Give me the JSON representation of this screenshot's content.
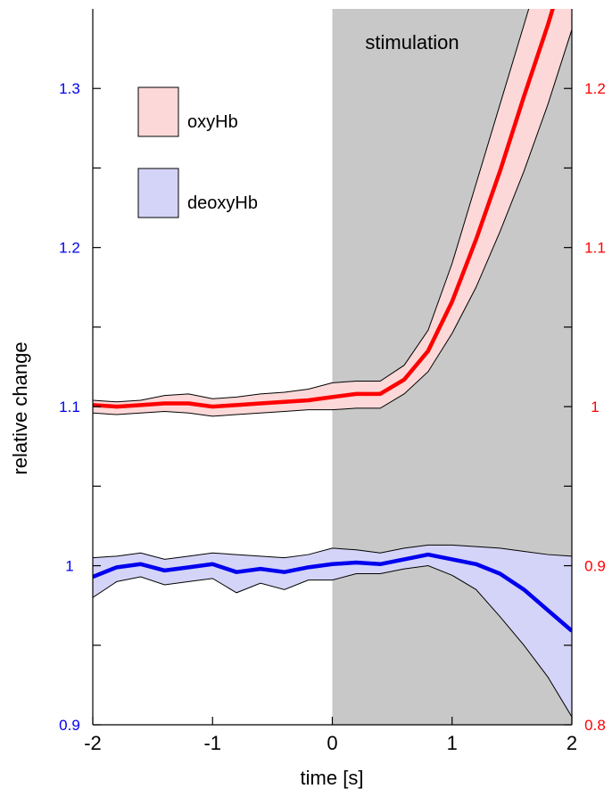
{
  "chart_data": {
    "type": "line",
    "title": "",
    "xlabel": "time [s]",
    "ylabel": "relative change",
    "xlim": [
      -2,
      2
    ],
    "ylim_left": [
      0.9,
      1.35
    ],
    "ylim_right": [
      0.8,
      1.25
    ],
    "x_ticks": [
      {
        "v": -2,
        "label": "-2"
      },
      {
        "v": -1,
        "label": "-1"
      },
      {
        "v": 0,
        "label": "0"
      },
      {
        "v": 1,
        "label": "1"
      },
      {
        "v": 2,
        "label": "2"
      }
    ],
    "y_left_ticks": [
      {
        "v": 0.9,
        "label": "0.9"
      },
      {
        "v": 0.95,
        "label": ""
      },
      {
        "v": 1.0,
        "label": "1"
      },
      {
        "v": 1.05,
        "label": ""
      },
      {
        "v": 1.1,
        "label": "1.1"
      },
      {
        "v": 1.15,
        "label": ""
      },
      {
        "v": 1.2,
        "label": "1.2"
      },
      {
        "v": 1.25,
        "label": ""
      },
      {
        "v": 1.3,
        "label": "1.3"
      }
    ],
    "y_right_ticks": [
      {
        "v": 0.8,
        "label": "0.8"
      },
      {
        "v": 0.85,
        "label": ""
      },
      {
        "v": 0.9,
        "label": "0.9"
      },
      {
        "v": 0.95,
        "label": ""
      },
      {
        "v": 1.0,
        "label": "1"
      },
      {
        "v": 1.05,
        "label": ""
      },
      {
        "v": 1.1,
        "label": "1.1"
      },
      {
        "v": 1.15,
        "label": ""
      },
      {
        "v": 1.2,
        "label": "1.2"
      }
    ],
    "shaded_region": {
      "x0": 0,
      "x1": 2,
      "label": "stimulation",
      "color": "#c8c8c8"
    },
    "x": [
      -2.0,
      -1.8,
      -1.6,
      -1.4,
      -1.2,
      -1.0,
      -0.8,
      -0.6,
      -0.4,
      -0.2,
      0.0,
      0.2,
      0.4,
      0.6,
      0.8,
      1.0,
      1.2,
      1.4,
      1.6,
      1.8,
      2.0
    ],
    "series": [
      {
        "name": "oxyHb",
        "axis": "right",
        "color": "#ff0000",
        "fill": "#fdd8d8",
        "values": [
          1.001,
          1.0,
          1.001,
          1.002,
          1.002,
          1.0,
          1.001,
          1.002,
          1.003,
          1.004,
          1.006,
          1.008,
          1.008,
          1.017,
          1.035,
          1.066,
          1.105,
          1.148,
          1.195,
          1.24,
          1.29
        ],
        "upper": [
          1.004,
          1.003,
          1.004,
          1.007,
          1.008,
          1.005,
          1.006,
          1.008,
          1.009,
          1.011,
          1.015,
          1.016,
          1.016,
          1.026,
          1.048,
          1.09,
          1.14,
          1.19,
          1.24,
          1.29,
          1.34
        ],
        "lower": [
          0.996,
          0.995,
          0.996,
          0.997,
          0.996,
          0.994,
          0.995,
          0.996,
          0.997,
          0.998,
          0.998,
          0.999,
          0.999,
          1.008,
          1.022,
          1.046,
          1.075,
          1.11,
          1.148,
          1.19,
          1.237
        ]
      },
      {
        "name": "deoxyHb",
        "axis": "left",
        "color": "#0000ee",
        "fill": "#d4d4f8",
        "values": [
          0.993,
          0.999,
          1.001,
          0.997,
          0.999,
          1.001,
          0.996,
          0.998,
          0.996,
          0.999,
          1.001,
          1.002,
          1.001,
          1.004,
          1.007,
          1.004,
          1.001,
          0.995,
          0.985,
          0.972,
          0.959
        ],
        "upper": [
          1.005,
          1.006,
          1.008,
          1.004,
          1.006,
          1.008,
          1.007,
          1.006,
          1.005,
          1.007,
          1.011,
          1.01,
          1.008,
          1.011,
          1.013,
          1.013,
          1.012,
          1.011,
          1.009,
          1.007,
          1.006
        ],
        "lower": [
          0.98,
          0.99,
          0.993,
          0.988,
          0.99,
          0.992,
          0.983,
          0.989,
          0.985,
          0.991,
          0.991,
          0.995,
          0.995,
          0.998,
          1.0,
          0.994,
          0.985,
          0.968,
          0.95,
          0.93,
          0.905
        ]
      }
    ],
    "legend": {
      "placement": "top-left",
      "entries": [
        "oxyHb",
        "deoxyHb"
      ]
    }
  }
}
